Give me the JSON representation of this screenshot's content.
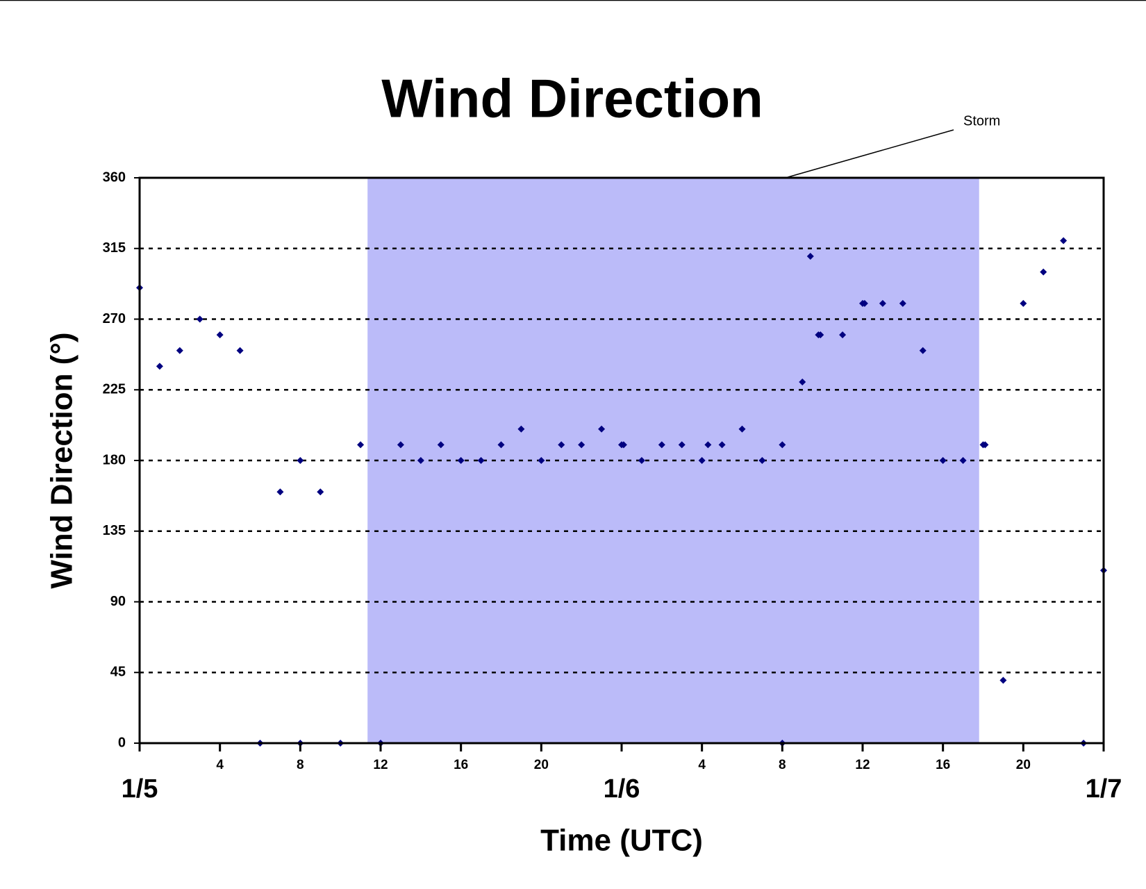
{
  "chart_data": {
    "type": "scatter",
    "title": "Wind Direction",
    "x_label": "Time (UTC)",
    "y_label": "Wind Direction (°)",
    "color": "#000080",
    "grid": true,
    "xlim": [
      0,
      48
    ],
    "ylim": [
      0,
      360
    ],
    "yticks": [
      0,
      45,
      90,
      135,
      180,
      225,
      270,
      315,
      360
    ],
    "xticks": [
      {
        "value": 0,
        "label": "1/5"
      },
      4,
      8,
      12,
      16,
      20,
      {
        "value": 24,
        "label": "1/6"
      },
      {
        "value": 28,
        "label": "4"
      },
      {
        "value": 32,
        "label": "8"
      },
      {
        "value": 36,
        "label": "12"
      },
      {
        "value": 40,
        "label": "16"
      },
      {
        "value": 44,
        "label": "20"
      },
      {
        "value": 48,
        "label": "1/7"
      }
    ],
    "shaded_region": {
      "label": "Storm",
      "xlim": [
        11.35,
        41.8
      ],
      "color": "#bbbbf9"
    },
    "x": [
      0,
      1,
      2,
      3,
      4,
      5,
      6,
      7,
      8,
      8,
      9,
      10,
      11,
      12,
      13,
      14,
      15,
      16,
      17,
      18,
      19,
      20,
      21,
      22,
      23,
      24,
      24.1,
      25,
      26,
      27,
      28,
      28.3,
      29,
      30,
      31,
      32,
      32,
      33,
      33.4,
      33.8,
      33.9,
      35,
      36,
      36.1,
      37,
      38,
      39,
      40,
      41,
      42,
      42.1,
      43,
      44,
      45,
      46,
      47,
      48
    ],
    "y": [
      290,
      240,
      250,
      270,
      260,
      250,
      0,
      160,
      180,
      0,
      160,
      0,
      190,
      0,
      190,
      180,
      190,
      180,
      180,
      190,
      200,
      180,
      190,
      190,
      200,
      190,
      190,
      180,
      190,
      190,
      180,
      190,
      190,
      200,
      180,
      190,
      0,
      230,
      310,
      260,
      260,
      260,
      280,
      280,
      280,
      280,
      250,
      180,
      180,
      190,
      190,
      40,
      280,
      300,
      320,
      0,
      110
    ]
  }
}
